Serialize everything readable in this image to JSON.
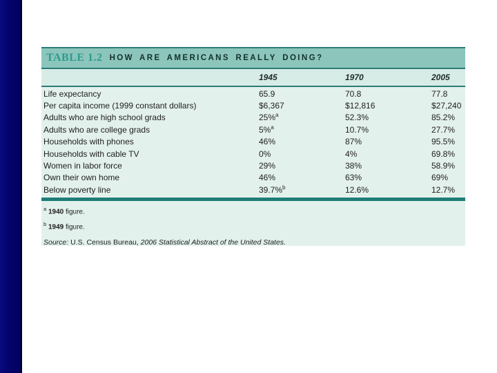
{
  "slide": {
    "background": "#ffffff",
    "sidebar_color": "#03036b",
    "sidebar_border_color": "#000000"
  },
  "table": {
    "label": "TABLE 1.2",
    "title": "HOW ARE AMERICANS REALLY DOING?",
    "columns": [
      "1945",
      "1970",
      "2005"
    ],
    "rows": [
      {
        "label": "Life expectancy",
        "values": [
          "65.9",
          "70.8",
          "77.8"
        ]
      },
      {
        "label": "Per capita income (1999 constant dollars)",
        "values": [
          "$6,367",
          "$12,816",
          "$27,240"
        ]
      },
      {
        "label": "Adults who are high school grads",
        "values": [
          {
            "text": "25%",
            "sup": "a"
          },
          "52.3%",
          "85.2%"
        ]
      },
      {
        "label": "Adults who are college grads",
        "values": [
          {
            "text": "5%",
            "sup": "a"
          },
          "10.7%",
          "27.7%"
        ]
      },
      {
        "label": "Households with phones",
        "values": [
          "46%",
          "87%",
          "95.5%"
        ]
      },
      {
        "label": "Households with cable TV",
        "values": [
          "0%",
          "4%",
          "69.8%"
        ]
      },
      {
        "label": "Women in labor force",
        "values": [
          "29%",
          "38%",
          "58.9%"
        ]
      },
      {
        "label": "Own their own home",
        "values": [
          "46%",
          "63%",
          "69%"
        ]
      },
      {
        "label": "Below poverty line",
        "values": [
          {
            "text": "39.7%",
            "sup": "b"
          },
          "12.6%",
          "12.7%"
        ]
      }
    ],
    "footnotes": [
      {
        "sup": "a",
        "year": "1940",
        "rest": " figure."
      },
      {
        "sup": "b",
        "year": "1949",
        "rest": " figure."
      }
    ],
    "source_segments": [
      {
        "text": "Source:",
        "italic": true
      },
      {
        "text": " U.S. Census Bureau, ",
        "italic": false
      },
      {
        "text": "2006 Statistical Abstract of the United States.",
        "italic": true
      }
    ],
    "colors": {
      "header_band": "#8cc5bb",
      "column_header_band": "#d8ece7",
      "body_background": "#e3f1ed",
      "rule": "#2a7c76",
      "thick_rule": "#1f7d76",
      "table_label_accent": "#2d9c8e",
      "title_text": "#13302d"
    }
  }
}
